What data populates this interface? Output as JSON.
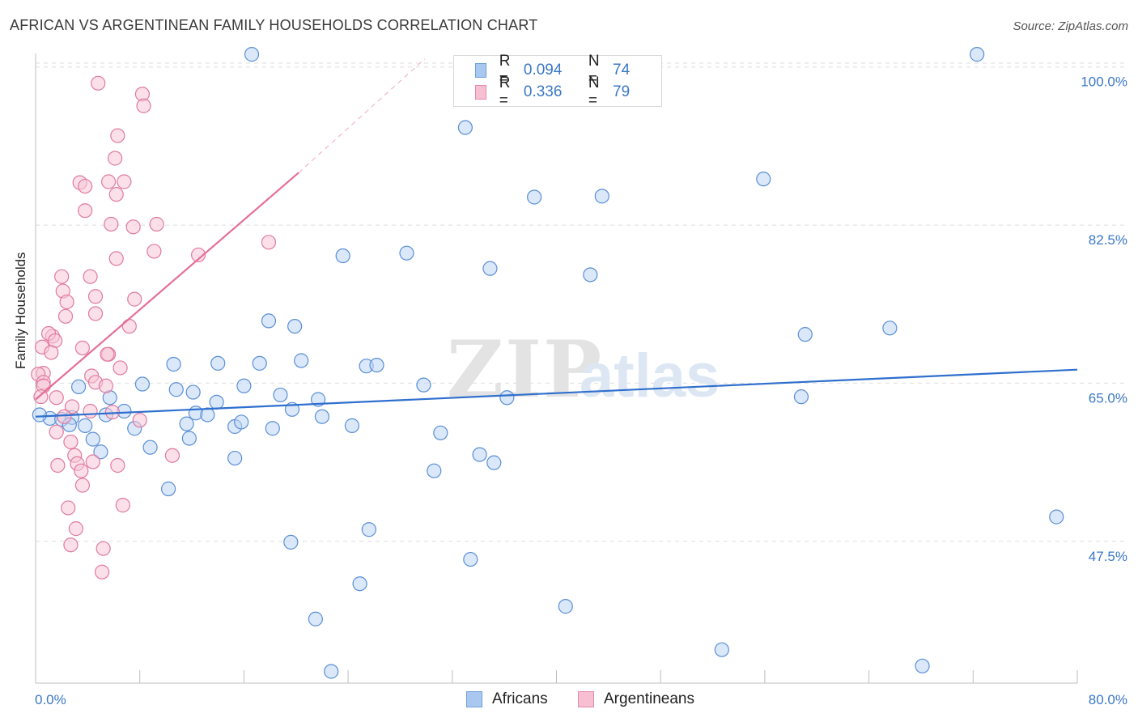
{
  "title": "AFRICAN VS ARGENTINEAN FAMILY HOUSEHOLDS CORRELATION CHART",
  "source": "Source: ZipAtlas.com",
  "watermark": {
    "zip": "ZIP",
    "atlas": "atlas"
  },
  "legend": {
    "rows": [
      {
        "r_label": "R =",
        "r_value": "0.094",
        "n_label": "N =",
        "n_value": "74",
        "color": "#a9c8f0",
        "border": "#6f9fd8"
      },
      {
        "r_label": "R =",
        "r_value": "0.336",
        "n_label": "N =",
        "n_value": "79",
        "color": "#f7bfd2",
        "border": "#e58aaa"
      }
    ]
  },
  "bottom_legend": [
    {
      "label": "Africans",
      "color": "#a9c8f0",
      "border": "#6f9fd8"
    },
    {
      "label": "Argentineans",
      "color": "#f7bfd2",
      "border": "#e58aaa"
    }
  ],
  "chart_data": {
    "type": "scatter",
    "title": "AFRICAN VS ARGENTINEAN FAMILY HOUSEHOLDS CORRELATION CHART",
    "xlabel": "",
    "ylabel": "Family Households",
    "xlim": [
      0,
      80
    ],
    "ylim": [
      31.8,
      101.5
    ],
    "x_tick_labels": [
      "0.0%",
      "80.0%"
    ],
    "y_ticks": [
      {
        "value": 100.0,
        "label": "100.0%"
      },
      {
        "value": 82.5,
        "label": "82.5%"
      },
      {
        "value": 65.0,
        "label": "65.0%"
      },
      {
        "value": 47.5,
        "label": "47.5%"
      }
    ],
    "x_minor_ticks": [
      0,
      8,
      16,
      24,
      32,
      40,
      48,
      56,
      64,
      72,
      80
    ],
    "series": [
      {
        "name": "Africans",
        "color": "#5b8fd6",
        "fill": "#bcd5f4",
        "trend": {
          "x": [
            0,
            80
          ],
          "y": [
            61.3,
            66.5
          ],
          "color": "#2f6fce"
        },
        "points": [
          [
            16.6,
            101.4
          ],
          [
            72.3,
            101.4
          ],
          [
            33.0,
            93.3
          ],
          [
            38.3,
            85.6
          ],
          [
            43.5,
            85.7
          ],
          [
            55.9,
            87.6
          ],
          [
            23.6,
            79.1
          ],
          [
            28.5,
            79.4
          ],
          [
            34.9,
            77.7
          ],
          [
            42.6,
            77.0
          ],
          [
            17.9,
            71.9
          ],
          [
            19.9,
            71.3
          ],
          [
            59.1,
            70.4
          ],
          [
            65.6,
            71.1
          ],
          [
            10.6,
            67.1
          ],
          [
            14.0,
            67.2
          ],
          [
            17.2,
            67.2
          ],
          [
            20.4,
            67.5
          ],
          [
            25.4,
            66.9
          ],
          [
            26.2,
            67.0
          ],
          [
            3.3,
            64.6
          ],
          [
            8.2,
            64.9
          ],
          [
            10.8,
            64.3
          ],
          [
            12.1,
            64.0
          ],
          [
            16.0,
            64.7
          ],
          [
            18.8,
            63.7
          ],
          [
            29.8,
            64.8
          ],
          [
            5.7,
            63.4
          ],
          [
            6.8,
            61.9
          ],
          [
            11.6,
            60.5
          ],
          [
            12.3,
            61.7
          ],
          [
            13.2,
            61.5
          ],
          [
            13.9,
            62.9
          ],
          [
            15.3,
            60.2
          ],
          [
            15.8,
            60.7
          ],
          [
            19.7,
            62.1
          ],
          [
            21.7,
            63.2
          ],
          [
            22.0,
            61.3
          ],
          [
            24.3,
            60.3
          ],
          [
            31.1,
            59.5
          ],
          [
            36.2,
            63.4
          ],
          [
            58.8,
            63.5
          ],
          [
            1.1,
            61.1
          ],
          [
            2.0,
            61.0
          ],
          [
            2.8,
            61.2
          ],
          [
            2.6,
            60.4
          ],
          [
            3.8,
            60.3
          ],
          [
            4.4,
            58.8
          ],
          [
            5.4,
            61.5
          ],
          [
            7.6,
            60.0
          ],
          [
            8.8,
            57.9
          ],
          [
            11.8,
            58.9
          ],
          [
            18.2,
            60.0
          ],
          [
            15.3,
            56.7
          ],
          [
            34.1,
            57.1
          ],
          [
            35.2,
            56.2
          ],
          [
            30.6,
            55.3
          ],
          [
            5.0,
            57.4
          ],
          [
            10.2,
            53.3
          ],
          [
            19.6,
            47.4
          ],
          [
            25.6,
            48.8
          ],
          [
            33.4,
            45.5
          ],
          [
            78.4,
            50.2
          ],
          [
            24.9,
            42.8
          ],
          [
            40.7,
            40.3
          ],
          [
            21.5,
            38.9
          ],
          [
            52.7,
            35.5
          ],
          [
            68.1,
            33.7
          ],
          [
            22.7,
            33.1
          ],
          [
            0.3,
            61.5
          ]
        ]
      },
      {
        "name": "Argentineans",
        "color": "#e07aa0",
        "fill": "#f8c6d7",
        "trend": {
          "x": [
            0,
            20.2
          ],
          "y": [
            63.2,
            88.3
          ],
          "color": "#e46f96",
          "extension": {
            "x": [
              20.2,
              29.9
            ],
            "y": [
              88.3,
              100.9
            ]
          }
        },
        "points": [
          [
            4.8,
            98.2
          ],
          [
            8.2,
            97.0
          ],
          [
            8.3,
            95.7
          ],
          [
            6.3,
            92.4
          ],
          [
            6.1,
            89.9
          ],
          [
            3.4,
            87.2
          ],
          [
            3.8,
            86.8
          ],
          [
            5.6,
            87.3
          ],
          [
            6.8,
            87.3
          ],
          [
            6.2,
            85.9
          ],
          [
            3.8,
            84.1
          ],
          [
            5.8,
            82.6
          ],
          [
            9.3,
            82.6
          ],
          [
            7.5,
            82.3
          ],
          [
            17.9,
            80.6
          ],
          [
            9.1,
            79.6
          ],
          [
            12.5,
            79.2
          ],
          [
            6.2,
            78.8
          ],
          [
            2.0,
            76.8
          ],
          [
            4.2,
            76.8
          ],
          [
            2.1,
            75.2
          ],
          [
            4.6,
            74.6
          ],
          [
            7.6,
            74.3
          ],
          [
            2.4,
            74.0
          ],
          [
            4.6,
            72.7
          ],
          [
            2.3,
            72.4
          ],
          [
            7.2,
            71.3
          ],
          [
            1.3,
            70.2
          ],
          [
            1.0,
            70.5
          ],
          [
            1.5,
            69.7
          ],
          [
            0.5,
            69.0
          ],
          [
            1.2,
            68.4
          ],
          [
            3.6,
            68.9
          ],
          [
            5.6,
            68.2
          ],
          [
            5.5,
            68.2
          ],
          [
            6.5,
            66.7
          ],
          [
            0.6,
            66.1
          ],
          [
            0.2,
            66.0
          ],
          [
            4.3,
            65.8
          ],
          [
            0.6,
            65.1
          ],
          [
            0.6,
            64.7
          ],
          [
            4.6,
            65.1
          ],
          [
            5.4,
            64.7
          ],
          [
            1.6,
            63.4
          ],
          [
            0.4,
            63.5
          ],
          [
            2.8,
            62.4
          ],
          [
            2.2,
            61.3
          ],
          [
            4.2,
            61.9
          ],
          [
            5.9,
            61.8
          ],
          [
            8.0,
            60.9
          ],
          [
            1.6,
            59.6
          ],
          [
            2.7,
            58.5
          ],
          [
            3.0,
            57.0
          ],
          [
            10.5,
            57.0
          ],
          [
            3.2,
            56.1
          ],
          [
            4.4,
            56.3
          ],
          [
            1.7,
            55.9
          ],
          [
            6.3,
            55.9
          ],
          [
            3.5,
            55.3
          ],
          [
            3.6,
            53.7
          ],
          [
            6.7,
            51.5
          ],
          [
            2.5,
            51.2
          ],
          [
            3.1,
            48.9
          ],
          [
            2.7,
            47.1
          ],
          [
            5.2,
            46.7
          ],
          [
            5.1,
            44.1
          ]
        ]
      }
    ]
  }
}
